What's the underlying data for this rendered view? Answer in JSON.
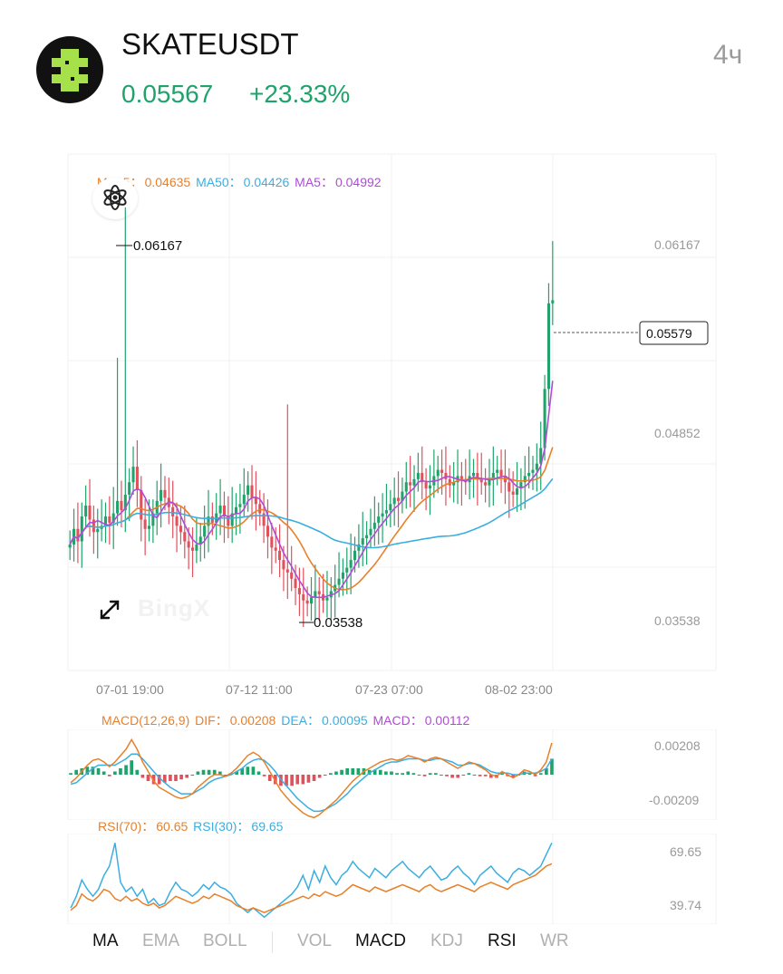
{
  "header": {
    "symbol": "SKATEUSDT",
    "price": "0.05567",
    "change": "+23.33%",
    "interval": "4ч"
  },
  "ma_legend": {
    "ma15_label": "MA15：",
    "ma15_value": "0.04635",
    "ma50_label": "MA50：",
    "ma50_value": "0.04426",
    "ma5_label": "MA5：",
    "ma5_value": "0.04992"
  },
  "macd_legend": {
    "name": "MACD(12,26,9)",
    "dif_label": "DIF：",
    "dif_value": "0.00208",
    "dea_label": "DEA：",
    "dea_value": "0.00095",
    "macd_label": "MACD：",
    "macd_value": "0.00112"
  },
  "rsi_legend": {
    "rsi70_label": "RSI(70)：",
    "rsi70_value": "60.65",
    "rsi30_label": "RSI(30)：",
    "rsi30_value": "69.65"
  },
  "watermark": "BingX",
  "tabs": [
    {
      "label": "MA",
      "active": true
    },
    {
      "label": "EMA",
      "active": false
    },
    {
      "label": "BOLL",
      "active": false
    },
    {
      "label": "VOL",
      "active": false
    },
    {
      "label": "MACD",
      "active": true
    },
    {
      "label": "KDJ",
      "active": false
    },
    {
      "label": "RSI",
      "active": true
    },
    {
      "label": "WR",
      "active": false
    }
  ],
  "icons": {
    "logo": "skate-logo-icon",
    "atom": "atom-icon",
    "expand": "expand-icon"
  },
  "colors": {
    "up": "#1fa36b",
    "down": "#e0515c",
    "ma15": "#e8802a",
    "ma50": "#3aaee0",
    "ma5": "#b04bd6",
    "logo_green": "#a6e04a"
  },
  "chart_data": [
    {
      "type": "candlestick",
      "title": "",
      "y_ticks": [
        "0.06167",
        "0.04852",
        "0.03538"
      ],
      "ylim": [
        0.0319,
        0.0651
      ],
      "x_ticks": [
        "07-01 19:00",
        "07-12 11:00",
        "07-23 07:00",
        "08-02 23:00"
      ],
      "grid": true,
      "current_price_label": "0.05579",
      "current_price": 0.05579,
      "high_label": "0.06167",
      "high": 0.06167,
      "low_label": "0.03538",
      "low": 0.03538,
      "close": [
        0.04,
        0.041,
        0.0402,
        0.0418,
        0.0425,
        0.0416,
        0.0408,
        0.041,
        0.0412,
        0.0418,
        0.0414,
        0.042,
        0.0428,
        0.0422,
        0.0432,
        0.044,
        0.045,
        0.0435,
        0.0416,
        0.041,
        0.0412,
        0.042,
        0.0428,
        0.0435,
        0.043,
        0.0424,
        0.0418,
        0.0412,
        0.0408,
        0.0402,
        0.0398,
        0.0396,
        0.04,
        0.0405,
        0.0412,
        0.0418,
        0.0414,
        0.042,
        0.0425,
        0.0418,
        0.0412,
        0.042,
        0.0424,
        0.0426,
        0.0432,
        0.0438,
        0.043,
        0.0426,
        0.042,
        0.0412,
        0.0405,
        0.0398,
        0.0396,
        0.039,
        0.0384,
        0.0382,
        0.0378,
        0.0372,
        0.0368,
        0.0364,
        0.0362,
        0.0366,
        0.037,
        0.0368,
        0.0364,
        0.0366,
        0.037,
        0.0374,
        0.0378,
        0.0382,
        0.0385,
        0.039,
        0.0396,
        0.04,
        0.0404,
        0.0406,
        0.041,
        0.0414,
        0.0418,
        0.042,
        0.0422,
        0.0426,
        0.043,
        0.0428,
        0.0434,
        0.044,
        0.0438,
        0.0442,
        0.0446,
        0.044,
        0.0436,
        0.0438,
        0.0444,
        0.0448,
        0.0446,
        0.0442,
        0.0438,
        0.044,
        0.0444,
        0.0442,
        0.044,
        0.0444,
        0.0446,
        0.0442,
        0.044,
        0.0438,
        0.0442,
        0.0446,
        0.0448,
        0.0444,
        0.044,
        0.0434,
        0.0432,
        0.0436,
        0.044,
        0.0444,
        0.0446,
        0.0448,
        0.0452,
        0.0462,
        0.05,
        0.0555,
        0.0557
      ],
      "series": [
        {
          "name": "MA15",
          "value": 0.04635
        },
        {
          "name": "MA50",
          "value": 0.04426
        },
        {
          "name": "MA5",
          "value": 0.04992
        }
      ]
    },
    {
      "type": "macd",
      "title": "MACD(12,26,9)",
      "y_ticks": [
        "0.00208",
        "-0.00209"
      ],
      "ylim": [
        -0.00285,
        0.00285
      ],
      "dif": [
        -0.0005,
        -0.0002,
        0.0002,
        0.0006,
        0.0009,
        0.001,
        0.0008,
        0.0005,
        0.0008,
        0.0012,
        0.0016,
        0.0022,
        0.0016,
        0.0008,
        0.0002,
        -0.0004,
        -0.0008,
        -0.001,
        -0.0012,
        -0.0014,
        -0.0015,
        -0.0014,
        -0.0012,
        -0.0008,
        -0.0005,
        -0.0002,
        0.0,
        0.0,
        -0.0001,
        0.0001,
        0.0004,
        0.0008,
        0.0012,
        0.0014,
        0.0012,
        0.0008,
        0.0002,
        -0.0004,
        -0.001,
        -0.0014,
        -0.0018,
        -0.0021,
        -0.0024,
        -0.0026,
        -0.0027,
        -0.0025,
        -0.0022,
        -0.0019,
        -0.0016,
        -0.0012,
        -0.0008,
        -0.0004,
        -0.0001,
        0.0002,
        0.0004,
        0.0006,
        0.0008,
        0.0009,
        0.001,
        0.0009,
        0.001,
        0.0012,
        0.0011,
        0.001,
        0.0008,
        0.001,
        0.0011,
        0.001,
        0.0008,
        0.0006,
        0.0004,
        0.0006,
        0.0008,
        0.0007,
        0.0005,
        0.0003,
        0.0,
        -0.0001,
        0.0002,
        0.0,
        -0.0002,
        0.0,
        0.0003,
        0.0002,
        0.0,
        0.0003,
        0.0008,
        0.002
      ],
      "dea": [
        -0.0006,
        -0.0005,
        -0.0002,
        0.0001,
        0.0004,
        0.0006,
        0.0006,
        0.0006,
        0.0006,
        0.0008,
        0.001,
        0.0013,
        0.0013,
        0.001,
        0.0006,
        0.0002,
        -0.0002,
        -0.0005,
        -0.0008,
        -0.001,
        -0.0012,
        -0.0012,
        -0.0012,
        -0.001,
        -0.0008,
        -0.0005,
        -0.0003,
        -0.0002,
        -0.0001,
        0.0,
        0.0002,
        0.0004,
        0.0007,
        0.0009,
        0.001,
        0.0009,
        0.0006,
        0.0002,
        -0.0003,
        -0.0007,
        -0.0011,
        -0.0015,
        -0.0018,
        -0.0021,
        -0.0023,
        -0.0023,
        -0.0022,
        -0.002,
        -0.0018,
        -0.0015,
        -0.0012,
        -0.0008,
        -0.0005,
        -0.0002,
        0.0001,
        0.0003,
        0.0005,
        0.0007,
        0.0008,
        0.0008,
        0.0009,
        0.001,
        0.001,
        0.001,
        0.0009,
        0.0009,
        0.001,
        0.001,
        0.0009,
        0.0008,
        0.0006,
        0.0006,
        0.0007,
        0.0007,
        0.0006,
        0.0004,
        0.0002,
        0.0001,
        0.0001,
        0.0001,
        0.0,
        0.0,
        0.0001,
        0.0001,
        0.0001,
        0.0002,
        0.0004,
        0.001
      ]
    },
    {
      "type": "line",
      "title": "RSI",
      "y_ticks": [
        "69.65",
        "39.74"
      ],
      "ylim": [
        35,
        74
      ],
      "rsi70": [
        41,
        43,
        48,
        46,
        45,
        47,
        50,
        49,
        46,
        45,
        47,
        45,
        46,
        44,
        43,
        44,
        42,
        43,
        45,
        47,
        46,
        45,
        44,
        45,
        47,
        46,
        48,
        47,
        46,
        45,
        43,
        42,
        41,
        42,
        41,
        40,
        41,
        42,
        43,
        44,
        45,
        46,
        47,
        46,
        48,
        47,
        49,
        48,
        47,
        48,
        50,
        52,
        51,
        50,
        49,
        51,
        50,
        49,
        50,
        51,
        52,
        51,
        50,
        49,
        51,
        52,
        50,
        49,
        50,
        51,
        52,
        51,
        50,
        49,
        51,
        52,
        53,
        52,
        51,
        50,
        52,
        53,
        54,
        55,
        56,
        58,
        60,
        61
      ],
      "rsi30": [
        42,
        47,
        54,
        50,
        47,
        50,
        56,
        60,
        70,
        53,
        49,
        51,
        47,
        50,
        44,
        46,
        43,
        44,
        49,
        53,
        50,
        49,
        47,
        49,
        52,
        50,
        53,
        51,
        50,
        48,
        44,
        42,
        40,
        42,
        40,
        38,
        40,
        42,
        44,
        46,
        48,
        51,
        56,
        50,
        58,
        53,
        60,
        55,
        52,
        56,
        58,
        62,
        59,
        57,
        55,
        59,
        57,
        55,
        58,
        60,
        62,
        59,
        57,
        55,
        58,
        60,
        57,
        54,
        55,
        58,
        60,
        57,
        55,
        52,
        56,
        58,
        60,
        57,
        55,
        53,
        57,
        59,
        58,
        56,
        58,
        60,
        65,
        70
      ]
    }
  ]
}
